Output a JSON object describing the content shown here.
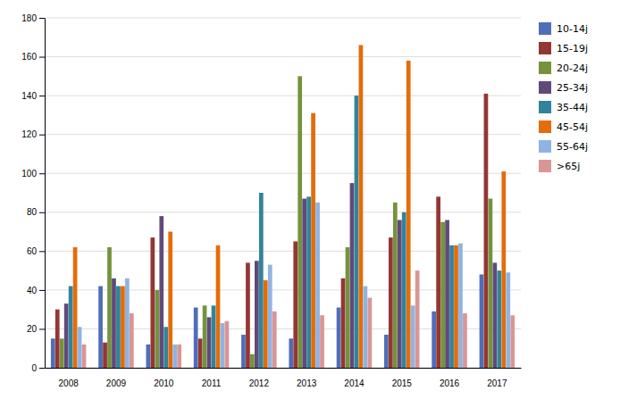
{
  "chart_data": {
    "type": "bar",
    "categories": [
      "2008",
      "2009",
      "2010",
      "2011",
      "2012",
      "2013",
      "2014",
      "2015",
      "2016",
      "2017"
    ],
    "series": [
      {
        "name": "10-14j",
        "color": "#4F6DB8",
        "values": [
          15,
          42,
          12,
          31,
          17,
          15,
          31,
          17,
          29,
          48
        ]
      },
      {
        "name": "15-19j",
        "color": "#943634",
        "values": [
          30,
          13,
          67,
          15,
          54,
          65,
          46,
          67,
          88,
          141
        ]
      },
      {
        "name": "20-24j",
        "color": "#76923C",
        "values": [
          15,
          62,
          40,
          32,
          7,
          150,
          62,
          85,
          75,
          87
        ]
      },
      {
        "name": "25-34j",
        "color": "#604A7B",
        "values": [
          33,
          46,
          78,
          26,
          55,
          87,
          95,
          76,
          76,
          54
        ]
      },
      {
        "name": "35-44j",
        "color": "#31849B",
        "values": [
          42,
          42,
          21,
          32,
          90,
          88,
          140,
          80,
          63,
          50
        ]
      },
      {
        "name": "45-54j",
        "color": "#E46C0A",
        "values": [
          62,
          42,
          70,
          63,
          45,
          131,
          166,
          158,
          63,
          101
        ]
      },
      {
        "name": "55-64j",
        "color": "#8EB4E3",
        "values": [
          21,
          46,
          12,
          23,
          53,
          85,
          42,
          32,
          64,
          49
        ]
      },
      {
        "name": ">65j",
        "color": "#D99694",
        "values": [
          12,
          28,
          12,
          24,
          29,
          27,
          36,
          50,
          28,
          27
        ]
      }
    ],
    "ylim": [
      0,
      180
    ],
    "yticks": [
      0,
      20,
      40,
      60,
      80,
      100,
      120,
      140,
      160,
      180
    ],
    "grid": true,
    "legend": "right"
  }
}
